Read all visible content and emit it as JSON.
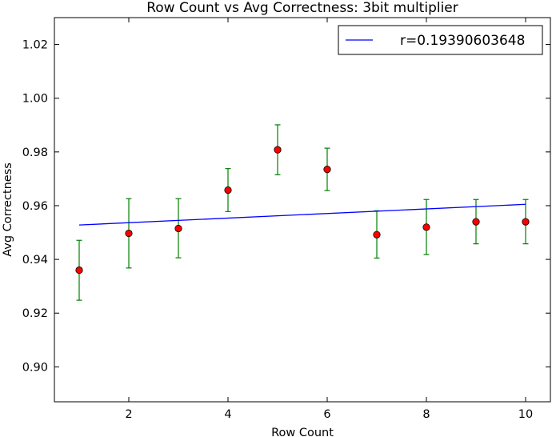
{
  "chart_data": {
    "type": "scatter",
    "title": "Row Count vs Avg Correctness: 3bit multiplier",
    "xlabel": "Row Count",
    "ylabel": "Avg Correctness",
    "xlim": [
      0.5,
      10.5
    ],
    "ylim": [
      0.887,
      1.03
    ],
    "xticks": [
      2,
      4,
      6,
      8,
      10
    ],
    "yticks": [
      0.9,
      0.92,
      0.94,
      0.96,
      0.98,
      1.0,
      1.02
    ],
    "grid": false,
    "legend_position": "top-right",
    "series": [
      {
        "kind": "errorbar",
        "x": [
          1,
          2,
          3,
          4,
          5,
          6,
          7,
          8,
          9,
          10
        ],
        "y": [
          0.936,
          0.9497,
          0.9515,
          0.9658,
          0.9808,
          0.9735,
          0.9492,
          0.952,
          0.954,
          0.954
        ],
        "err_low": [
          0.9248,
          0.9368,
          0.9406,
          0.9578,
          0.9715,
          0.9656,
          0.9405,
          0.9418,
          0.9458,
          0.9458
        ],
        "err_high": [
          0.9471,
          0.9626,
          0.9626,
          0.9738,
          0.9901,
          0.9814,
          0.9581,
          0.9623,
          0.9623,
          0.9623
        ],
        "marker_color": "#ff0000",
        "errorbar_color": "#008000"
      },
      {
        "kind": "line",
        "name": "r=0.19390603648",
        "x": [
          1,
          10
        ],
        "y": [
          0.9528,
          0.9605
        ],
        "color": "#0000ff"
      }
    ]
  }
}
